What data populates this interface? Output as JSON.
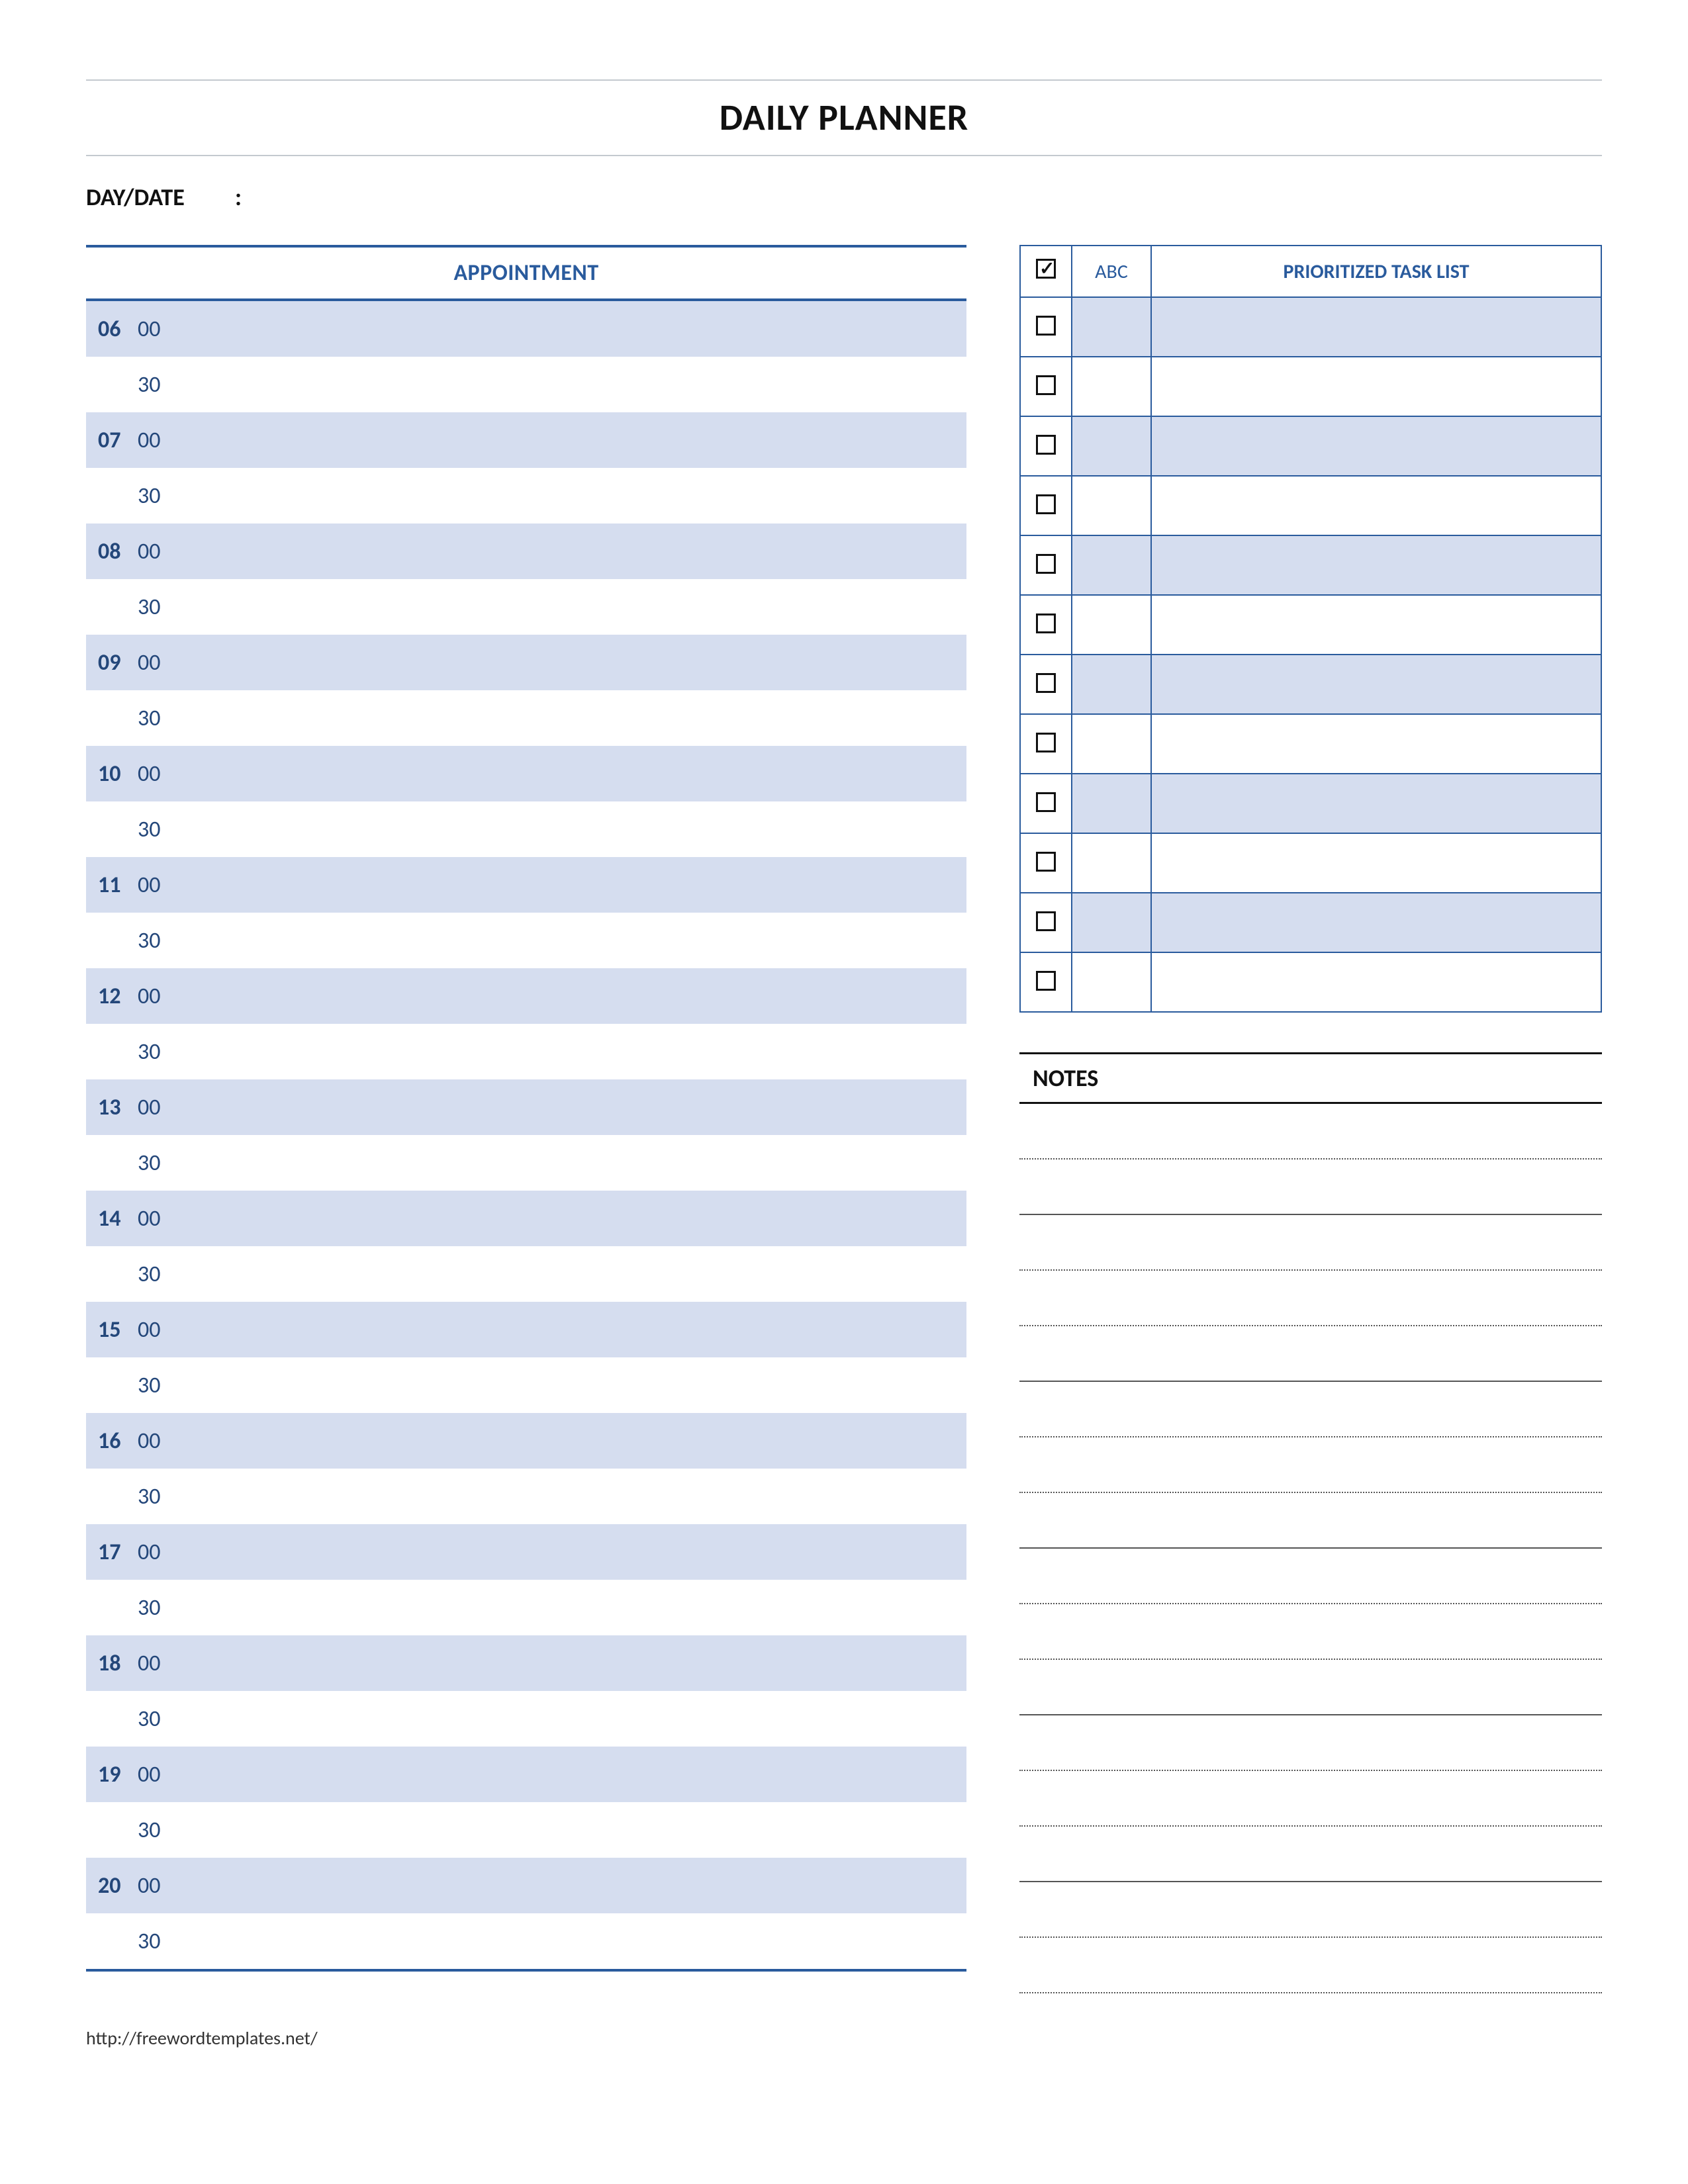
{
  "title": "DAILY PLANNER",
  "daydate_label": "DAY/DATE",
  "daydate_sep": ":",
  "appointment": {
    "header": "APPOINTMENT",
    "hours": [
      "06",
      "07",
      "08",
      "09",
      "10",
      "11",
      "12",
      "13",
      "14",
      "15",
      "16",
      "17",
      "18",
      "19",
      "20"
    ],
    "min_top": "00",
    "min_bottom": "30",
    "colors": {
      "border": "#2a5b9d",
      "shade": "#d5ddef",
      "text": "#24477a"
    }
  },
  "tasks": {
    "col_check_icon": "check",
    "col_abc": "ABC",
    "col_title": "PRIORITIZED TASK LIST",
    "row_count": 12,
    "colors": {
      "border": "#2a5b9d",
      "shade": "#d5ddef",
      "text": "#2a5b9d"
    }
  },
  "notes": {
    "header": "NOTES",
    "line_count": 16
  },
  "footer_url": "http://freewordtemplates.net/"
}
